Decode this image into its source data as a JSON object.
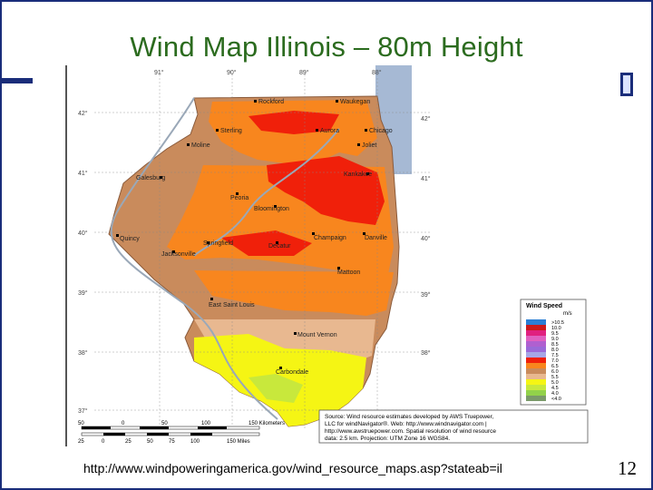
{
  "slide": {
    "title": "Wind Map Illinois – 80m Height",
    "url": "http://www.windpoweringamerica.gov/wind_resource_maps.asp?stateab=il",
    "page_number": "12"
  },
  "map": {
    "longitudes": [
      "91°",
      "90°",
      "89°",
      "88°"
    ],
    "latitudes_left": [
      "42°",
      "41°",
      "40°",
      "39°",
      "38°",
      "37°"
    ],
    "latitudes_right": [
      "42°",
      "41°",
      "40°",
      "39°",
      "38°"
    ],
    "cities": [
      {
        "name": "Rockford"
      },
      {
        "name": "Waukegan"
      },
      {
        "name": "Sterling"
      },
      {
        "name": "Aurora"
      },
      {
        "name": "Chicago"
      },
      {
        "name": "Moline"
      },
      {
        "name": "Joliet"
      },
      {
        "name": "Galesburg"
      },
      {
        "name": "Kankakee"
      },
      {
        "name": "Peoria"
      },
      {
        "name": "Bloomington"
      },
      {
        "name": "Quincy"
      },
      {
        "name": "Champaign"
      },
      {
        "name": "Danville"
      },
      {
        "name": "Springfield"
      },
      {
        "name": "Decatur"
      },
      {
        "name": "Jacksonville"
      },
      {
        "name": "Mattoon"
      },
      {
        "name": "East Saint Louis"
      },
      {
        "name": "Mount Vernon"
      },
      {
        "name": "Carbondale"
      }
    ],
    "legend": {
      "title": "Wind Speed",
      "unit": "m/s",
      "entries": [
        {
          "label": ">10.5",
          "color": "#2a7fd4"
        },
        {
          "label": "10.0",
          "color": "#cc1a1a"
        },
        {
          "label": "9.5",
          "color": "#e0207f"
        },
        {
          "label": "9.0",
          "color": "#e060c0"
        },
        {
          "label": "8.5",
          "color": "#b060d0"
        },
        {
          "label": "8.0",
          "color": "#9a6ad8"
        },
        {
          "label": "7.5",
          "color": "#a6a6e6"
        },
        {
          "label": "7.0",
          "color": "#f0200a"
        },
        {
          "label": "6.5",
          "color": "#f8861e"
        },
        {
          "label": "6.0",
          "color": "#c98b5c"
        },
        {
          "label": "5.5",
          "color": "#e8b890"
        },
        {
          "label": "5.0",
          "color": "#f5f514"
        },
        {
          "label": "4.5",
          "color": "#c8e83c"
        },
        {
          "label": "4.0",
          "color": "#92d24a"
        },
        {
          "label": "<4.0",
          "color": "#7a9a6a"
        }
      ]
    },
    "source_lines": [
      "Source: Wind resource estimates developed by AWS Truepower,",
      "LLC for windNavigator®. Web: http://www.windnavigator.com |",
      "http://www.awstruepower.com. Spatial resolution of wind resource",
      "data: 2.5 km. Projection: UTM Zone 16 WGS84."
    ],
    "scale_km": [
      "50",
      "0",
      "50",
      "100",
      "150 Kilometers"
    ],
    "scale_mi": [
      "25",
      "0",
      "25",
      "50",
      "75",
      "100",
      "150 Miles"
    ]
  }
}
